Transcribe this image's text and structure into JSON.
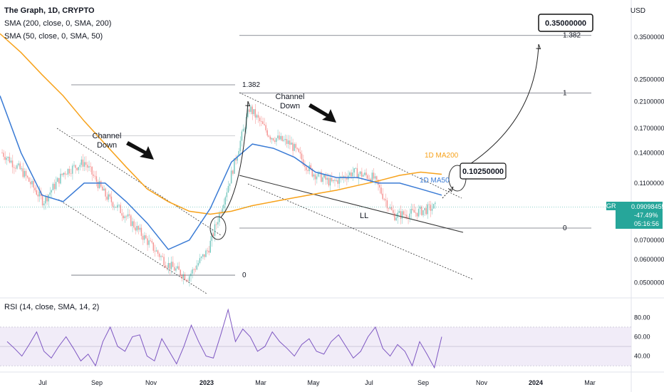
{
  "header": {
    "title": "The Graph, 1D, CRYPTO",
    "sma200_label": "SMA (200, close, 0, SMA, 200)",
    "sma50_label": "SMA (50, close, 0, SMA, 50)",
    "currency": "USD",
    "rsi_label": "RSI (14, close, SMA, 14, 2)"
  },
  "last_price": {
    "symbol": "GRTUSD",
    "price": "0.09098455",
    "change": "-47.49%",
    "countdown": "05:16:56"
  },
  "colors": {
    "up": "#26a69a",
    "down": "#ef5350",
    "ma200": "#f7a21b",
    "ma50": "#3a7bd5",
    "rsi": "#7e57c2",
    "rsi_band": "#ede7f6"
  },
  "chart_data": [
    {
      "type": "candlestick",
      "scale": "log",
      "x_ticks": [
        "Jul",
        "Sep",
        "Nov",
        "2023",
        "Mar",
        "May",
        "Jul",
        "Sep",
        "Nov",
        "2024",
        "Mar"
      ],
      "y_ticks": [
        "0.35000000",
        "0.25000000",
        "0.21000000",
        "0.17000000",
        "0.14000000",
        "0.11000000",
        "0.09000000",
        "0.07000000",
        "0.06000000",
        "0.05000000"
      ],
      "ylim": [
        0.045,
        0.42
      ],
      "series": [
        {
          "name": "1D MA200",
          "values": [
            0.36,
            0.31,
            0.26,
            0.22,
            0.18,
            0.15,
            0.125,
            0.105,
            0.095,
            0.088,
            0.086,
            0.088,
            0.092,
            0.095,
            0.098,
            0.101,
            0.104,
            0.108,
            0.112,
            0.117,
            0.12,
            0.118
          ]
        },
        {
          "name": "1D MA50",
          "values": [
            0.22,
            0.14,
            0.1,
            0.095,
            0.11,
            0.11,
            0.095,
            0.08,
            0.065,
            0.07,
            0.09,
            0.13,
            0.15,
            0.145,
            0.135,
            0.12,
            0.115,
            0.115,
            0.11,
            0.11,
            0.105,
            0.1
          ]
        },
        {
          "name": "price_path",
          "values": [
            0.14,
            0.12,
            0.095,
            0.12,
            0.13,
            0.1,
            0.085,
            0.07,
            0.058,
            0.052,
            0.065,
            0.11,
            0.2,
            0.16,
            0.15,
            0.12,
            0.11,
            0.12,
            0.115,
            0.085,
            0.087,
            0.091
          ]
        }
      ],
      "fib_levels": [
        {
          "label": "1.382",
          "value": 0.355
        },
        {
          "label": "1",
          "value": 0.225
        },
        {
          "label": "0",
          "value": 0.077
        },
        {
          "label": "1.382",
          "value": 0.24
        },
        {
          "label": "0",
          "value": 0.053
        }
      ],
      "annotations": [
        {
          "text": "Channel\nDown"
        },
        {
          "text": "Channel\nDown"
        },
        {
          "text": "1D MA200"
        },
        {
          "text": "1D MA50"
        },
        {
          "text": "LL"
        },
        {
          "text": "0.10250000"
        },
        {
          "text": "0.35000000"
        }
      ]
    },
    {
      "type": "line",
      "name": "RSI",
      "y_ticks": [
        "80.00",
        "60.00",
        "40.00"
      ],
      "ylim": [
        25,
        95
      ],
      "band": [
        30,
        70
      ],
      "values": [
        55,
        48,
        40,
        52,
        65,
        45,
        38,
        50,
        60,
        48,
        35,
        42,
        30,
        55,
        70,
        50,
        45,
        60,
        62,
        40,
        35,
        58,
        45,
        32,
        50,
        72,
        55,
        40,
        38,
        62,
        88,
        55,
        68,
        60,
        45,
        50,
        65,
        55,
        48,
        40,
        52,
        58,
        45,
        42,
        55,
        62,
        50,
        38,
        45,
        60,
        70,
        48,
        40,
        52,
        45,
        30,
        55,
        42,
        28,
        60
      ]
    }
  ]
}
